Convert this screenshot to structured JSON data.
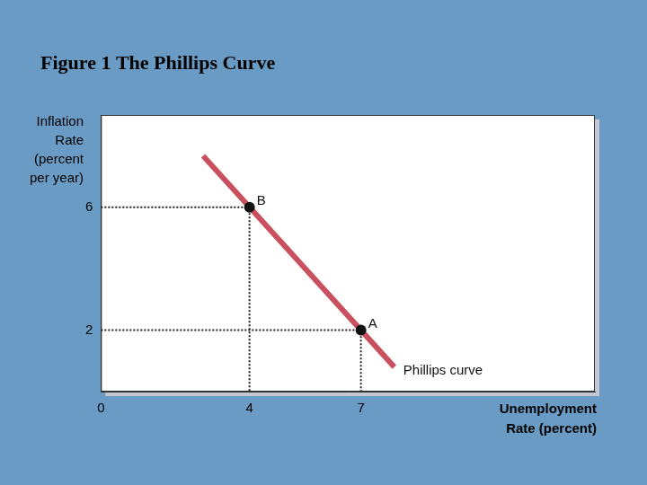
{
  "chart_data": {
    "type": "line",
    "title": "Figure 1 The Phillips Curve",
    "x_label": "Unemployment Rate (percent)",
    "y_label": "Inflation Rate (percent per year)",
    "series": [
      {
        "name": "Phillips curve",
        "type": "line",
        "color": "#c9505f",
        "marker": "none",
        "line_style": "solid",
        "x": [
          2.75,
          7.9
        ],
        "values": [
          7.67,
          0.8
        ]
      },
      {
        "type": "scatter",
        "color": "#111111",
        "marker": "circle",
        "labels": [
          "B",
          "A"
        ],
        "x": [
          4,
          7
        ],
        "values": [
          6,
          2
        ]
      }
    ],
    "xlim": [
      0,
      13.3
    ],
    "ylim": [
      0,
      9
    ],
    "xticks": [
      0,
      4,
      7
    ],
    "yticks": [
      2,
      6
    ],
    "grid": false
  }
}
